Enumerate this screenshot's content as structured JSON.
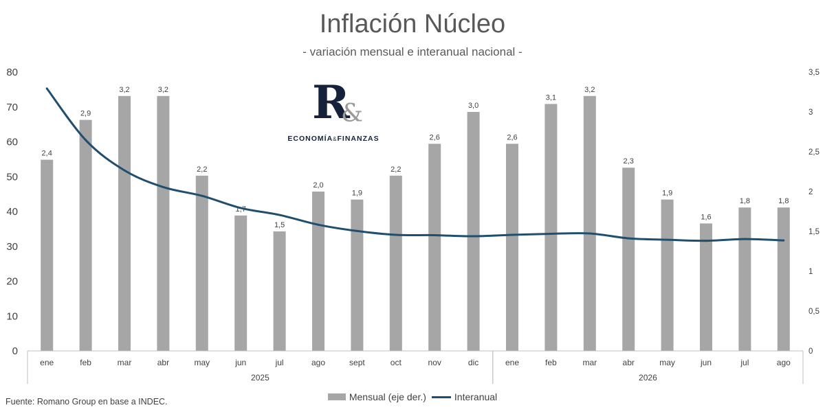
{
  "title": "Inflación Núcleo",
  "subtitle": "- variación mensual e interanual nacional -",
  "logo": {
    "mark": "R",
    "amp": "&",
    "name_left": "ECONOMÍA",
    "name_amp": "&",
    "name_right": "FINANZAS"
  },
  "source": "Fuente: Romano Group en base a INDEC.",
  "colors": {
    "bars": "#a6a6a6",
    "line": "#1f4e6e",
    "text": "#404040"
  },
  "chart_data": {
    "type": "bar",
    "categories": [
      "ene",
      "feb",
      "mar",
      "abr",
      "may",
      "jun",
      "jul",
      "ago",
      "sept",
      "oct",
      "nov",
      "dic",
      "ene",
      "feb",
      "mar",
      "abr",
      "may",
      "jun",
      "jul",
      "ago"
    ],
    "groups": [
      {
        "label": "2025",
        "start": 0,
        "end": 11
      },
      {
        "label": "2026",
        "start": 12,
        "end": 19
      }
    ],
    "left_axis": {
      "ylim": [
        0,
        80
      ],
      "ticks": [
        "0",
        "10",
        "20",
        "30",
        "40",
        "50",
        "60",
        "70",
        "80"
      ]
    },
    "right_axis": {
      "ylim": [
        0,
        3.5
      ],
      "ticks": [
        "0",
        "0,5",
        "1",
        "1,5",
        "2",
        "2,5",
        "3",
        "3,5"
      ]
    },
    "series": [
      {
        "name": "Mensual (eje der.)",
        "type": "bar",
        "axis": "right",
        "values": [
          2.4,
          2.9,
          3.2,
          3.2,
          2.2,
          1.7,
          1.5,
          2.0,
          1.9,
          2.2,
          2.6,
          3.0,
          2.6,
          3.1,
          3.2,
          2.3,
          1.9,
          1.6,
          1.8,
          1.8
        ],
        "labels": [
          "2,4",
          "2,9",
          "3,2",
          "3,2",
          "2,2",
          "1,7",
          "1,5",
          "2,0",
          "1,9",
          "2,2",
          "2,6",
          "3,0",
          "2,6",
          "3,1",
          "3,2",
          "2,3",
          "1,9",
          "1,6",
          "1,8",
          "1,8"
        ]
      },
      {
        "name": "Interanual",
        "type": "line",
        "axis": "left",
        "values": [
          75.3,
          60.5,
          51.8,
          47.0,
          44.5,
          41.0,
          39.0,
          36.2,
          34.4,
          33.3,
          33.2,
          32.9,
          33.3,
          33.6,
          33.7,
          32.3,
          31.9,
          31.6,
          32.1,
          31.7
        ]
      }
    ],
    "legend_position": "bottom"
  }
}
